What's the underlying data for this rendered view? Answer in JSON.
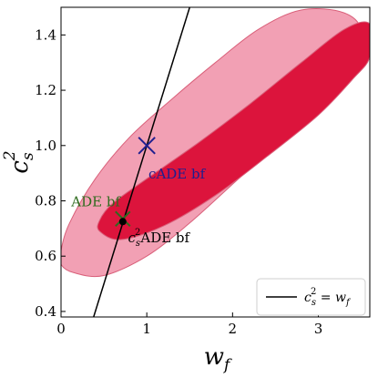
{
  "chart_data": {
    "type": "contour",
    "xlabel": "w_f",
    "ylabel": "c_s^2",
    "xlim": [
      0,
      3.6
    ],
    "ylim": [
      0.38,
      1.5
    ],
    "x_ticks": [
      "0",
      "1",
      "2",
      "3"
    ],
    "y_ticks": [
      "0.4",
      "0.6",
      "0.8",
      "1.0",
      "1.2",
      "1.4"
    ],
    "grid": false,
    "legend_position": "bottom-right",
    "colors": {
      "outer_contour": "#f2a0b4",
      "inner_contour": "#dc143c",
      "contour_edge": "#d9607a",
      "line": "#000000",
      "cade_marker": "#1f1f8f",
      "ade_marker": "#2e6b1e",
      "cs2ade_marker": "#000000"
    },
    "contours": [
      {
        "level": "outer",
        "points": [
          [
            0.0,
            0.57
          ],
          [
            0.15,
            0.54
          ],
          [
            0.5,
            0.53
          ],
          [
            1.0,
            0.6
          ],
          [
            1.5,
            0.72
          ],
          [
            2.0,
            0.86
          ],
          [
            2.5,
            1.0
          ],
          [
            3.0,
            1.15
          ],
          [
            3.35,
            1.28
          ],
          [
            3.5,
            1.41
          ],
          [
            3.3,
            1.48
          ],
          [
            2.8,
            1.49
          ],
          [
            2.3,
            1.42
          ],
          [
            1.8,
            1.3
          ],
          [
            1.3,
            1.17
          ],
          [
            0.8,
            1.03
          ],
          [
            0.4,
            0.88
          ],
          [
            0.1,
            0.72
          ],
          [
            0.0,
            0.62
          ]
        ]
      },
      {
        "level": "inner",
        "points": [
          [
            0.45,
            0.69
          ],
          [
            0.7,
            0.66
          ],
          [
            1.2,
            0.71
          ],
          [
            1.8,
            0.82
          ],
          [
            2.4,
            0.96
          ],
          [
            3.0,
            1.11
          ],
          [
            3.4,
            1.24
          ],
          [
            3.6,
            1.32
          ],
          [
            3.6,
            1.44
          ],
          [
            3.3,
            1.42
          ],
          [
            2.8,
            1.3
          ],
          [
            2.2,
            1.15
          ],
          [
            1.6,
            1.01
          ],
          [
            1.0,
            0.88
          ],
          [
            0.6,
            0.79
          ],
          [
            0.45,
            0.73
          ]
        ]
      }
    ],
    "line": {
      "label": "c_s^2 = w_f",
      "points": [
        [
          0.38,
          0.38
        ],
        [
          1.5,
          1.5
        ]
      ]
    },
    "markers": [
      {
        "name": "cADE bf",
        "x": 1.0,
        "y": 1.0,
        "symbol": "x"
      },
      {
        "name": "ADE bf",
        "x": 0.72,
        "y": 0.735,
        "symbol": "x"
      },
      {
        "name": "c_s^2 ADE bf",
        "x": 0.72,
        "y": 0.725,
        "symbol": "circle"
      }
    ],
    "annotations": [
      {
        "text": "cADE bf",
        "x": 1.02,
        "y": 0.88,
        "color": "#1f1f8f"
      },
      {
        "text": "ADE bf",
        "x": 0.12,
        "y": 0.78,
        "color": "#2e6b1e"
      },
      {
        "text_main": "c",
        "text_sub": "s",
        "text_sup": "2",
        "text_rest": "ADE bf",
        "x": 0.78,
        "y": 0.65,
        "color": "#000000"
      }
    ],
    "legend": {
      "entries": [
        {
          "symbol_main": "c",
          "symbol_sub": "s",
          "symbol_sup": "2",
          "relation": " = ",
          "rhs_main": "w",
          "rhs_sub": "f"
        }
      ]
    }
  }
}
